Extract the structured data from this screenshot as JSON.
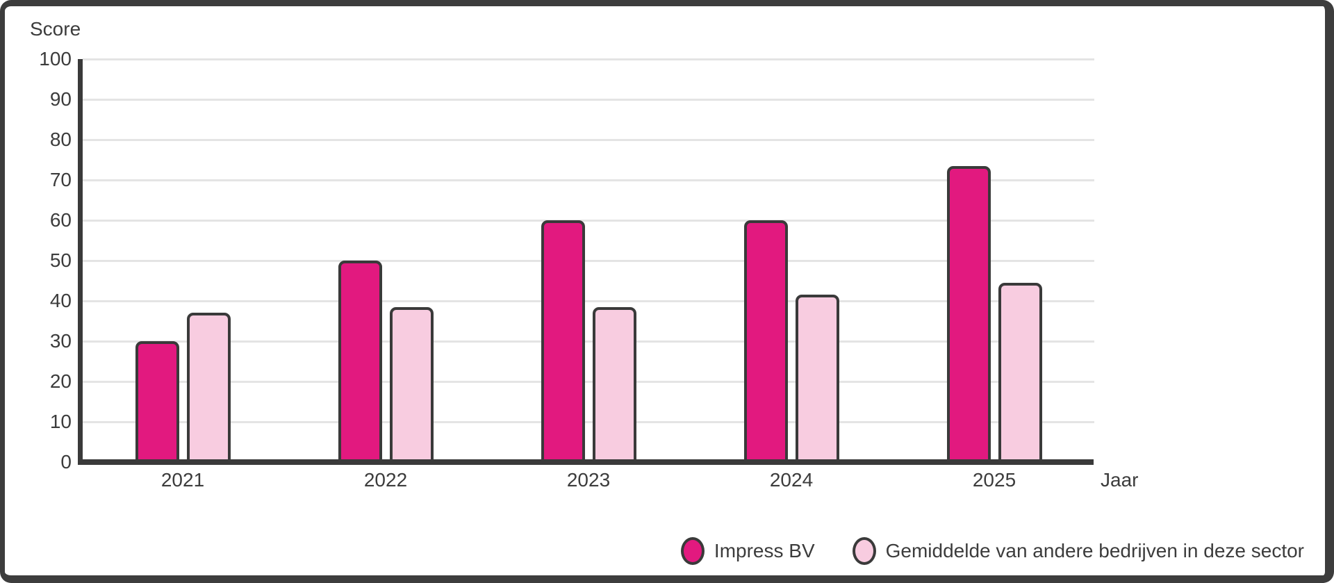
{
  "chart_data": {
    "type": "bar",
    "ylabel": "Score",
    "xlabel": "Jaar",
    "categories": [
      "2021",
      "2022",
      "2023",
      "2024",
      "2025"
    ],
    "series": [
      {
        "name": "Impress BV",
        "color": "#E2197F",
        "values": [
          30,
          50,
          60,
          60,
          73.5
        ]
      },
      {
        "name": "Gemiddelde van andere bedrijven in deze sector",
        "color": "#F8CCE0",
        "values": [
          37,
          38.5,
          38.5,
          41.5,
          44.5
        ]
      }
    ],
    "ylim": [
      0,
      100
    ],
    "y_ticks": [
      0,
      10,
      20,
      30,
      40,
      50,
      60,
      70,
      80,
      90,
      100
    ],
    "grid": true,
    "legend_position": "bottom-right",
    "colors": {
      "axis": "#3A3A3A",
      "grid": "#E4E4E4",
      "frame": "#3D3D3D",
      "background": "#FFFFFF"
    }
  }
}
